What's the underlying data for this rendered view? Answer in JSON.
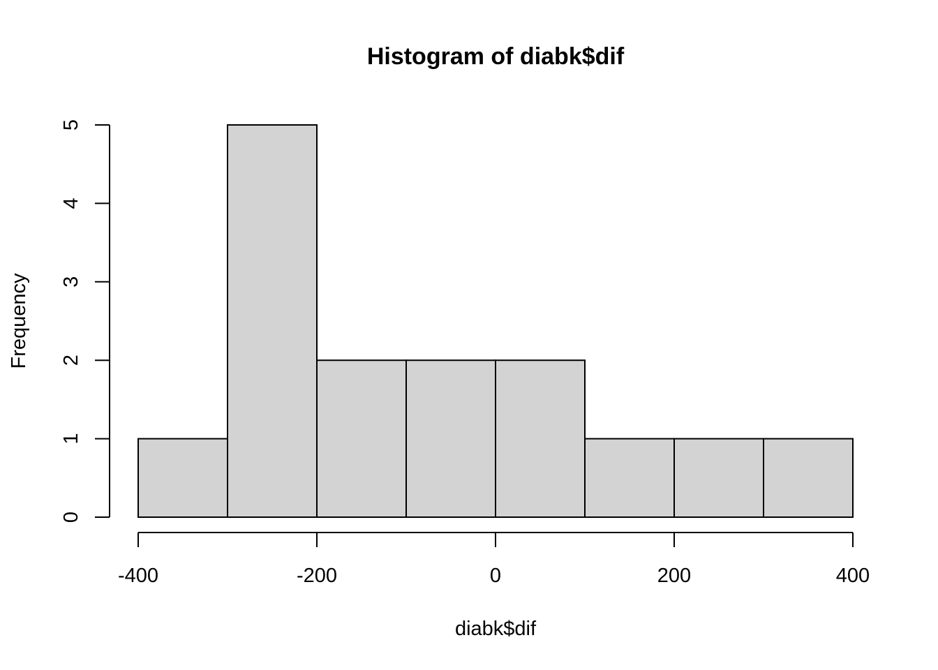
{
  "chart_data": {
    "type": "bar",
    "title": "Histogram of diabk$dif",
    "xlabel": "diabk$dif",
    "ylabel": "Frequency",
    "bins": [
      {
        "from": -400,
        "to": -300,
        "count": 1
      },
      {
        "from": -300,
        "to": -200,
        "count": 5
      },
      {
        "from": -200,
        "to": -100,
        "count": 2
      },
      {
        "from": -100,
        "to": 0,
        "count": 2
      },
      {
        "from": 0,
        "to": 100,
        "count": 2
      },
      {
        "from": 100,
        "to": 200,
        "count": 1
      },
      {
        "from": 200,
        "to": 300,
        "count": 1
      },
      {
        "from": 300,
        "to": 400,
        "count": 1
      }
    ],
    "xlim": [
      -400,
      400
    ],
    "ylim": [
      0,
      5
    ],
    "x_ticks": [
      -400,
      -200,
      0,
      200,
      400
    ],
    "x_tick_labels": [
      "-400",
      "-200",
      "0",
      "200",
      "400"
    ],
    "y_ticks": [
      0,
      1,
      2,
      3,
      4,
      5
    ],
    "y_tick_labels": [
      "0",
      "1",
      "2",
      "3",
      "4",
      "5"
    ],
    "grid": false,
    "bar_color": "#d3d3d3",
    "edge_color": "#000000"
  }
}
